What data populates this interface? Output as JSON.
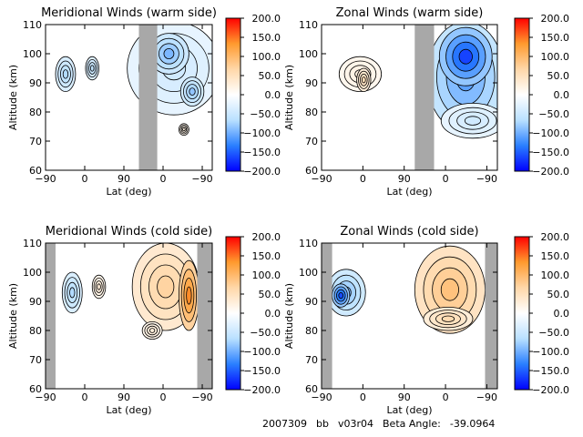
{
  "palette": {
    "stops": [
      "#0000ff",
      "#2a7fff",
      "#b9e0ff",
      "#ffffff",
      "#ffd7a8",
      "#ff9a2e",
      "#ff0000"
    ],
    "gray": "#a8a8a8",
    "line": "#000000"
  },
  "footer": {
    "date_code": "2007309",
    "mode": "bb",
    "version": "v03r04",
    "beta_label": "Beta Angle:",
    "beta_value": "-39.0964"
  },
  "chart_data": [
    {
      "type": "heatmap",
      "title": "Meridional Winds (warm side)",
      "xlabel": "Lat (deg)",
      "ylabel": "Altitude (km)",
      "x_ticks": [
        "-90",
        "0",
        "90",
        "0",
        "-90"
      ],
      "y_ticks": [
        "60",
        "70",
        "80",
        "90",
        "100",
        "110"
      ],
      "ylim": [
        60,
        110
      ],
      "colorbar": {
        "range": [
          -200,
          200
        ],
        "tick_labels": [
          "200.0",
          "150.0",
          "100.0",
          "50.0",
          "0.0",
          "-50.0",
          "-100.0",
          "-150.0",
          "-200.0"
        ]
      },
      "no_data_bands": [
        [
          0.56,
          0.67
        ]
      ],
      "features": [
        {
          "x": 0.12,
          "alt": 93,
          "rx": 0.06,
          "ry": 6,
          "value": -70
        },
        {
          "x": 0.28,
          "alt": 95,
          "rx": 0.04,
          "ry": 4,
          "value": -60
        },
        {
          "x": 0.77,
          "alt": 95,
          "rx": 0.28,
          "ry": 16,
          "value": -45
        },
        {
          "x": 0.74,
          "alt": 100,
          "rx": 0.12,
          "ry": 7,
          "value": -95
        },
        {
          "x": 0.88,
          "alt": 87,
          "rx": 0.07,
          "ry": 5,
          "value": -85
        },
        {
          "x": 0.83,
          "alt": 74,
          "rx": 0.03,
          "ry": 2,
          "value": 25
        }
      ]
    },
    {
      "type": "heatmap",
      "title": "Zonal Winds (warm side)",
      "xlabel": "Lat (deg)",
      "ylabel": "Altitude (km)",
      "x_ticks": [
        "-90",
        "0",
        "90",
        "0",
        "-90"
      ],
      "y_ticks": [
        "60",
        "70",
        "80",
        "90",
        "100",
        "110"
      ],
      "ylim": [
        60,
        110
      ],
      "colorbar": {
        "range": [
          -200,
          200
        ],
        "tick_labels": [
          "200.0",
          "150.0",
          "100.0",
          "50.0",
          "0.0",
          "-50.0",
          "-100.0",
          "-150.0",
          "-200.0"
        ]
      },
      "no_data_bands": [
        [
          0.53,
          0.64
        ]
      ],
      "features": [
        {
          "x": 0.22,
          "alt": 93,
          "rx": 0.12,
          "ry": 6,
          "value": 25
        },
        {
          "x": 0.24,
          "alt": 91,
          "rx": 0.04,
          "ry": 4,
          "value": 55
        },
        {
          "x": 0.82,
          "alt": 92,
          "rx": 0.22,
          "ry": 19,
          "value": -110
        },
        {
          "x": 0.82,
          "alt": 99,
          "rx": 0.15,
          "ry": 10,
          "value": -165
        },
        {
          "x": 0.86,
          "alt": 77,
          "rx": 0.18,
          "ry": 6,
          "value": -45
        }
      ]
    },
    {
      "type": "heatmap",
      "title": "Meridional Winds (cold side)",
      "xlabel": "Lat (deg)",
      "ylabel": "Altitude (km)",
      "x_ticks": [
        "-90",
        "0",
        "90",
        "0",
        "-90"
      ],
      "y_ticks": [
        "60",
        "70",
        "80",
        "90",
        "100",
        "110"
      ],
      "ylim": [
        60,
        110
      ],
      "colorbar": {
        "range": [
          -200,
          200
        ],
        "tick_labels": [
          "200.0",
          "150.0",
          "100.0",
          "50.0",
          "0.0",
          "-50.0",
          "-100.0",
          "-150.0",
          "-200.0"
        ]
      },
      "no_data_bands": [
        [
          0.0,
          0.06
        ],
        [
          0.91,
          1.0
        ]
      ],
      "features": [
        {
          "x": 0.16,
          "alt": 93,
          "rx": 0.06,
          "ry": 7,
          "value": -70
        },
        {
          "x": 0.32,
          "alt": 95,
          "rx": 0.04,
          "ry": 4,
          "value": 30
        },
        {
          "x": 0.72,
          "alt": 95,
          "rx": 0.2,
          "ry": 15,
          "value": 70
        },
        {
          "x": 0.86,
          "alt": 92,
          "rx": 0.06,
          "ry": 12,
          "value": 140
        },
        {
          "x": 0.64,
          "alt": 80,
          "rx": 0.06,
          "ry": 3,
          "value": 30
        }
      ]
    },
    {
      "type": "heatmap",
      "title": "Zonal Winds (cold side)",
      "xlabel": "Lat (deg)",
      "ylabel": "Altitude (km)",
      "x_ticks": [
        "-90",
        "0",
        "90",
        "0",
        "-90"
      ],
      "y_ticks": [
        "60",
        "70",
        "80",
        "90",
        "100",
        "110"
      ],
      "ylim": [
        60,
        110
      ],
      "colorbar": {
        "range": [
          -200,
          200
        ],
        "tick_labels": [
          "200.0",
          "150.0",
          "100.0",
          "50.0",
          "0.0",
          "-50.0",
          "-100.0",
          "-150.0",
          "-200.0"
        ]
      },
      "no_data_bands": [
        [
          0.0,
          0.06
        ],
        [
          0.93,
          1.0
        ]
      ],
      "features": [
        {
          "x": 0.14,
          "alt": 93,
          "rx": 0.11,
          "ry": 8,
          "value": -90
        },
        {
          "x": 0.11,
          "alt": 92,
          "rx": 0.05,
          "ry": 4,
          "value": -160
        },
        {
          "x": 0.73,
          "alt": 94,
          "rx": 0.2,
          "ry": 15,
          "value": 90
        },
        {
          "x": 0.72,
          "alt": 84,
          "rx": 0.14,
          "ry": 4,
          "value": 60
        }
      ]
    }
  ]
}
